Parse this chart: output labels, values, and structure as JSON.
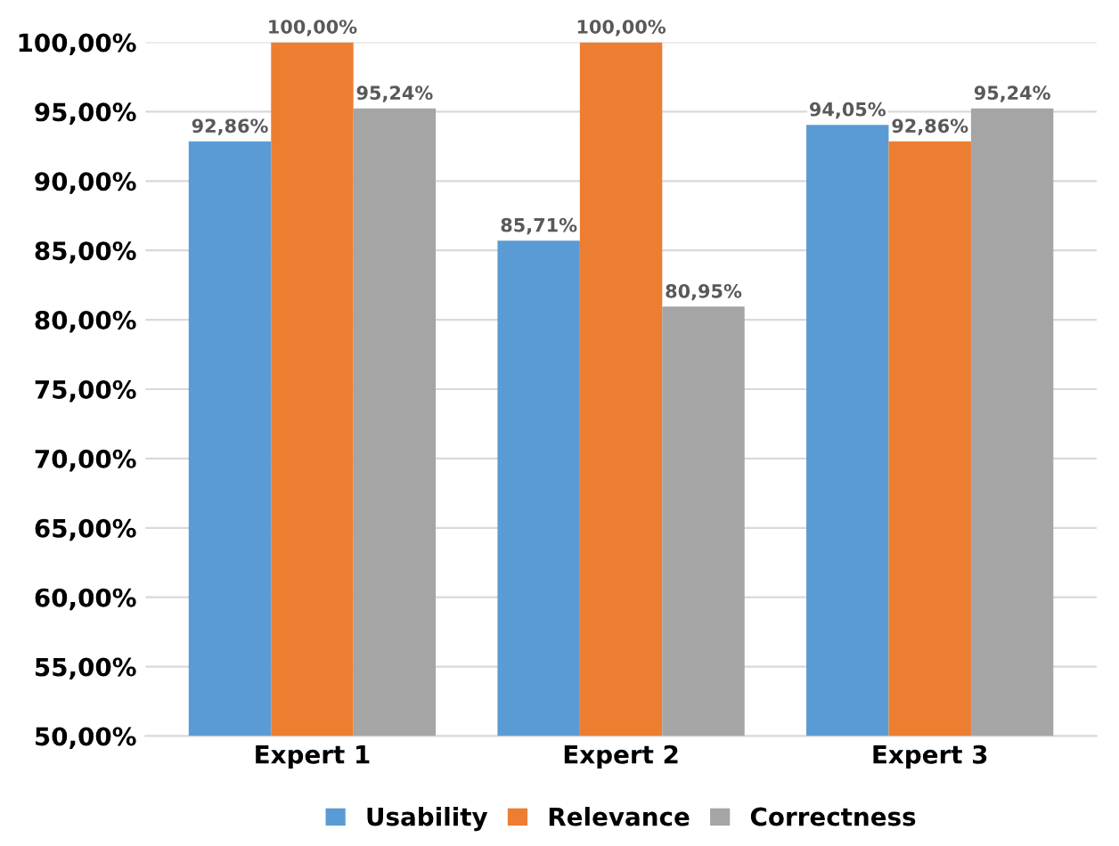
{
  "chart_data": {
    "type": "bar",
    "categories": [
      "Expert 1",
      "Expert 2",
      "Expert 3"
    ],
    "series": [
      {
        "name": "Usability",
        "color": "#5b9bd5",
        "values": [
          92.86,
          85.71,
          94.05
        ],
        "value_labels": [
          "92,86%",
          "85,71%",
          "94,05%"
        ]
      },
      {
        "name": "Relevance",
        "color": "#ed7d31",
        "values": [
          100,
          100,
          92.86
        ],
        "value_labels": [
          "100,00%",
          "100,00%",
          "92,86%"
        ]
      },
      {
        "name": "Correctness",
        "color": "#a5a5a5",
        "values": [
          95.24,
          80.95,
          95.24
        ],
        "value_labels": [
          "95,24%",
          "80,95%",
          "95,24%"
        ]
      }
    ],
    "ylim": [
      50,
      100
    ],
    "yticks": [
      {
        "value": 50,
        "label": "50,00%"
      },
      {
        "value": 55,
        "label": "55,00%"
      },
      {
        "value": 60,
        "label": "60,00%"
      },
      {
        "value": 65,
        "label": "65,00%"
      },
      {
        "value": 70,
        "label": "70,00%"
      },
      {
        "value": 75,
        "label": "75,00%"
      },
      {
        "value": 80,
        "label": "80,00%"
      },
      {
        "value": 85,
        "label": "85,00%"
      },
      {
        "value": 90,
        "label": "90,00%"
      },
      {
        "value": 95,
        "label": "95,00%"
      },
      {
        "value": 100,
        "label": "100,00%"
      }
    ],
    "grid": "y",
    "legend": "bottom"
  }
}
